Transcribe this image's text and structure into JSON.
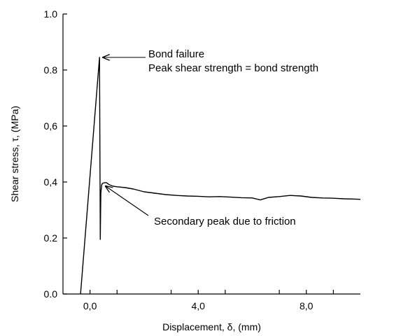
{
  "chart_data": {
    "type": "line",
    "xlabel": "Displacement, δ, (mm)",
    "ylabel": "Shear stress, τ, (MPa)",
    "xlim": [
      -1.0,
      10.0
    ],
    "ylim": [
      0.0,
      1.0
    ],
    "x_ticks": [
      0.0,
      4.0,
      8.0
    ],
    "y_ticks": [
      0.0,
      0.2,
      0.4,
      0.6,
      0.8,
      1.0
    ],
    "x_tick_labels": [
      "0,0",
      "4,0",
      "8,0"
    ],
    "y_tick_labels": [
      "0.0",
      "0.2",
      "0,4",
      "0,6",
      "0.8",
      "1.0"
    ],
    "series": [
      {
        "color": "#000000",
        "x": [
          -0.35,
          0.35,
          0.38,
          0.4,
          0.43,
          0.46,
          0.52,
          0.6,
          0.72,
          0.85,
          1.0,
          1.3,
          1.6,
          2.0,
          2.4,
          2.8,
          3.2,
          3.6,
          4.0,
          4.4,
          4.8,
          5.2,
          5.6,
          6.0,
          6.3,
          6.6,
          7.0,
          7.4,
          7.8,
          8.2,
          8.6,
          9.0,
          9.4,
          9.8,
          10.0
        ],
        "y": [
          0.0,
          0.845,
          0.195,
          0.36,
          0.39,
          0.395,
          0.397,
          0.398,
          0.39,
          0.385,
          0.383,
          0.38,
          0.375,
          0.365,
          0.36,
          0.355,
          0.352,
          0.35,
          0.349,
          0.347,
          0.348,
          0.346,
          0.344,
          0.343,
          0.336,
          0.345,
          0.348,
          0.352,
          0.35,
          0.345,
          0.343,
          0.342,
          0.34,
          0.339,
          0.338
        ]
      }
    ],
    "annotations": [
      {
        "lines": [
          "Bond failure",
          "Peak shear strength = bond strength"
        ],
        "target_x": 0.35,
        "target_y": 0.845
      },
      {
        "lines": [
          "Secondary peak due to friction"
        ],
        "target_x": 0.5,
        "target_y": 0.395
      }
    ],
    "grid": false,
    "legend": "none"
  }
}
